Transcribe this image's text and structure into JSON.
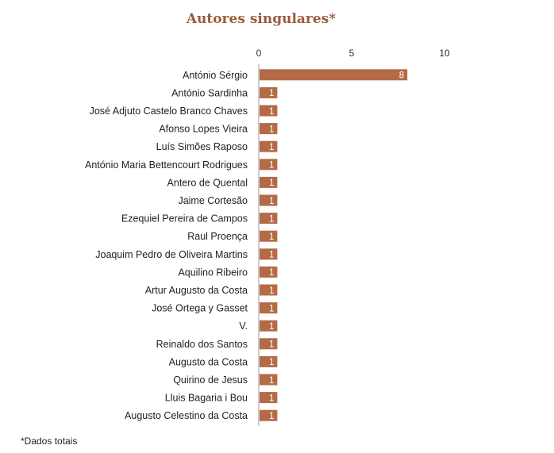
{
  "chart_data": {
    "type": "bar",
    "orientation": "horizontal",
    "title": "Autores singulares*",
    "footnote": "*Dados totais",
    "xlim": [
      0,
      10
    ],
    "xticks": [
      0,
      5,
      10
    ],
    "xtick_labels": [
      "0",
      "5",
      "10"
    ],
    "categories": [
      "António Sérgio",
      "António Sardinha",
      "José Adjuto Castelo Branco Chaves",
      "Afonso Lopes Vieira",
      "Luís Simões Raposo",
      "António Maria Bettencourt Rodrigues",
      "Antero de Quental",
      "Jaime Cortesão",
      "Ezequiel Pereira de Campos",
      "Raul Proença",
      "Joaquim Pedro de Oliveira Martins",
      "Aquilino Ribeiro",
      "Artur Augusto da Costa",
      "José Ortega y Gasset",
      "V.",
      "Reinaldo dos Santos",
      "Augusto da Costa",
      "Quirino de Jesus",
      "Lluis Bagaria i Bou",
      "Augusto Celestino da Costa"
    ],
    "values": [
      8,
      1,
      1,
      1,
      1,
      1,
      1,
      1,
      1,
      1,
      1,
      1,
      1,
      1,
      1,
      1,
      1,
      1,
      1,
      1
    ],
    "bar_color": "#b56a47",
    "title_color": "#9b5a3c",
    "grid": false
  }
}
